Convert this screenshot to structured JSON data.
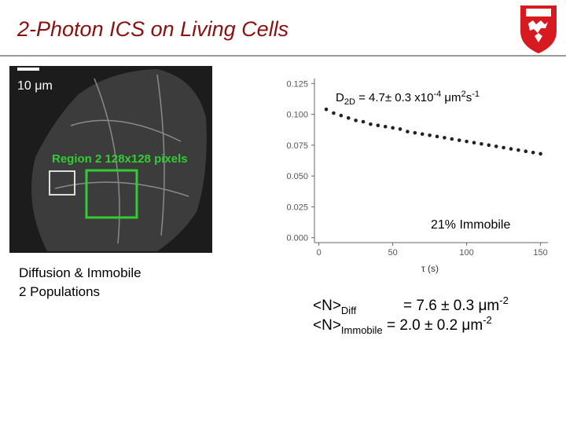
{
  "slide": {
    "title": "2-Photon ICS on Living Cells",
    "scale_bar": "10 μm",
    "region_label": "Region 2 128x128 pixels",
    "note": [
      "Diffusion & Immobile",
      "2 Populations"
    ],
    "results": [
      [
        "<N>",
        "Diff",
        "= 7.6 ± 0.3 μm",
        "-2"
      ],
      [
        "<N>",
        "Immobile",
        " = 2.0 ± 0.2 μm",
        "-2"
      ]
    ]
  },
  "chart_data": {
    "type": "scatter",
    "x": [
      5,
      10,
      15,
      20,
      25,
      30,
      35,
      40,
      45,
      50,
      55,
      60,
      65,
      70,
      75,
      80,
      85,
      90,
      95,
      100,
      105,
      110,
      115,
      120,
      125,
      130,
      135,
      140,
      145,
      150
    ],
    "values": [
      0.104,
      0.101,
      0.099,
      0.097,
      0.095,
      0.094,
      0.092,
      0.091,
      0.09,
      0.089,
      0.088,
      0.086,
      0.085,
      0.084,
      0.083,
      0.082,
      0.081,
      0.08,
      0.079,
      0.078,
      0.077,
      0.076,
      0.075,
      0.074,
      0.073,
      0.072,
      0.071,
      0.07,
      0.069,
      0.068
    ],
    "color": "#222222",
    "x_label": "τ (s)",
    "xlim": [
      -3,
      155
    ],
    "xticks": [
      0,
      50,
      100,
      150
    ],
    "ylim": [
      -0.004,
      0.129
    ],
    "yticks": [
      {
        "value": 0,
        "label": "0.000"
      },
      0.025,
      {
        "value": 0.05,
        "label": "0.050"
      },
      0.075,
      {
        "value": 0.1,
        "label": "0.100"
      },
      0.125
    ],
    "annotations": [
      [
        "D",
        "2D",
        " = 4.7± 0.3 x10",
        "-4",
        " μm",
        "2",
        "s",
        "-1"
      ],
      "21% Immobile"
    ]
  }
}
